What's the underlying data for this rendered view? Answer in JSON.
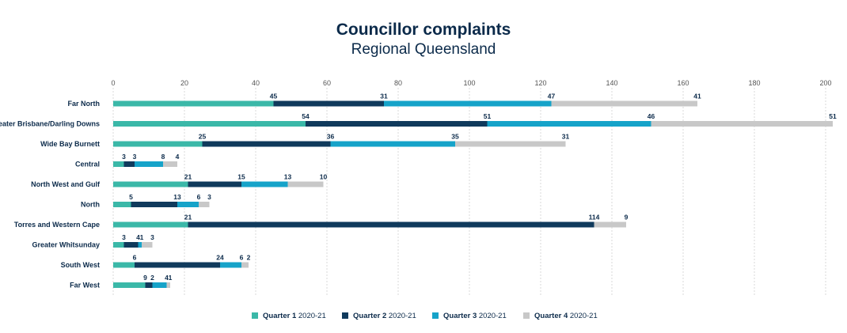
{
  "chart_data": {
    "type": "bar",
    "orientation": "horizontal",
    "stacked": true,
    "title": "Councillor complaints",
    "subtitle": "Regional Queensland",
    "xlim": [
      0,
      200
    ],
    "xticks": [
      0,
      20,
      40,
      60,
      80,
      100,
      120,
      140,
      160,
      180,
      200
    ],
    "grid": true,
    "legend_position": "bottom",
    "categories": [
      "Far North",
      "Greater Brisbane/Darling Downs",
      "Wide Bay Burnett",
      "Central",
      "North West and Gulf",
      "North",
      "Torres and Western Cape",
      "Greater Whitsunday",
      "South West",
      "Far West"
    ],
    "series": [
      {
        "name": "Quarter 1",
        "name_suffix": "2020-21",
        "color": "#3bb8a8",
        "values": [
          45,
          54,
          25,
          3,
          21,
          5,
          21,
          3,
          6,
          9
        ]
      },
      {
        "name": "Quarter 2",
        "name_suffix": "2020-21",
        "color": "#103a5c",
        "values": [
          31,
          51,
          36,
          3,
          15,
          13,
          114,
          4,
          24,
          2
        ]
      },
      {
        "name": "Quarter 3",
        "name_suffix": "2020-21",
        "color": "#16a3c9",
        "values": [
          47,
          46,
          35,
          8,
          13,
          6,
          null,
          1,
          6,
          4
        ]
      },
      {
        "name": "Quarter 4",
        "name_suffix": "2020-21",
        "color": "#c8c8c8",
        "values": [
          41,
          51,
          31,
          4,
          10,
          3,
          9,
          3,
          2,
          1
        ]
      }
    ]
  }
}
